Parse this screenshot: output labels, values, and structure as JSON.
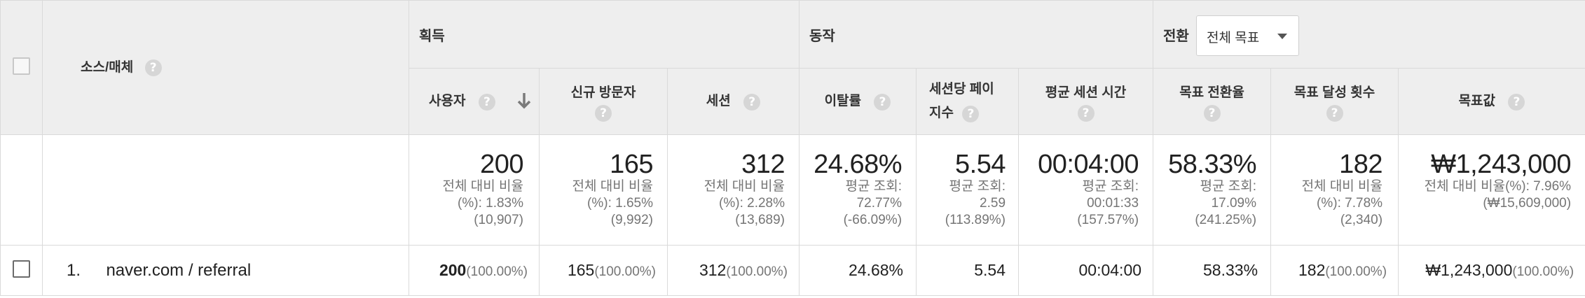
{
  "source_header": {
    "label": "소스/매체"
  },
  "groups": {
    "acquisition": "획득",
    "behavior": "동작",
    "conversion": "전환"
  },
  "goal_select": {
    "value": "전체 목표"
  },
  "columns": {
    "users": "사용자",
    "new_visitors": "신규 방문자",
    "sessions": "세션",
    "bounce_rate": "이탈률",
    "pages_per_session_l1": "세션당 페이",
    "pages_per_session_l2": "지수",
    "avg_session_duration": "평균 세션 시간",
    "goal_conversion_rate": "목표 전환율",
    "goal_completions": "목표 달성 횟수",
    "goal_value": "목표값"
  },
  "summary": {
    "users": {
      "value": "200",
      "sub": [
        "전체 대비 비율",
        "(%): 1.83%",
        "(10,907)"
      ]
    },
    "new_visitors": {
      "value": "165",
      "sub": [
        "전체 대비 비율",
        "(%): 1.65%",
        "(9,992)"
      ]
    },
    "sessions": {
      "value": "312",
      "sub": [
        "전체 대비 비율",
        "(%): 2.28%",
        "(13,689)"
      ]
    },
    "bounce_rate": {
      "value": "24.68%",
      "sub": [
        "평균 조회:",
        "72.77%",
        "(-66.09%)"
      ]
    },
    "pages_per_session": {
      "value": "5.54",
      "sub": [
        "평균 조회:",
        "2.59",
        "(113.89%)"
      ]
    },
    "avg_session_duration": {
      "value": "00:04:00",
      "sub": [
        "평균 조회:",
        "00:01:33",
        "(157.57%)"
      ]
    },
    "goal_conversion_rate": {
      "value": "58.33%",
      "sub": [
        "평균 조회:",
        "17.09%",
        "(241.25%)"
      ]
    },
    "goal_completions": {
      "value": "182",
      "sub": [
        "전체 대비 비율",
        "(%): 7.78%",
        "(2,340)"
      ]
    },
    "goal_value": {
      "value": "₩1,243,000",
      "sub": [
        "전체 대비 비율(%): 7.96%",
        "(₩15,609,000)"
      ]
    }
  },
  "rows": [
    {
      "index": "1.",
      "source": "naver.com / referral",
      "users": "200",
      "users_pct": "(100.00%)",
      "new_visitors": "165",
      "new_visitors_pct": "(100.00%)",
      "sessions": "312",
      "sessions_pct": "(100.00%)",
      "bounce_rate": "24.68%",
      "pages_per_session": "5.54",
      "avg_session_duration": "00:04:00",
      "goal_conversion_rate": "58.33%",
      "goal_completions": "182",
      "goal_completions_pct": "(100.00%)",
      "goal_value": "₩1,243,000",
      "goal_value_pct": "(100.00%)"
    }
  ],
  "icons": {
    "help": "?",
    "sort_desc": "arrow-down-icon"
  },
  "colors": {
    "header_bg": "#eeeeee",
    "border": "#dadada",
    "muted_text": "#757575"
  }
}
